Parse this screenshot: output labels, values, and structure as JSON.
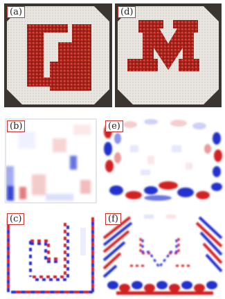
{
  "panels": [
    {
      "id": "a",
      "label": "(a)"
    },
    {
      "id": "b",
      "label": "(b)"
    },
    {
      "id": "c",
      "label": "(c)"
    },
    {
      "id": "d",
      "label": "(d)"
    },
    {
      "id": "e",
      "label": "(e)"
    },
    {
      "id": "f",
      "label": "(f)"
    }
  ],
  "colors": {
    "photo_background": "#3a3530",
    "plate": "#e9e6e2",
    "pin_red": "#b3261e",
    "field_positive": "#d21f1f",
    "field_negative": "#1f2fd2",
    "field_zero": "#ffffff"
  }
}
